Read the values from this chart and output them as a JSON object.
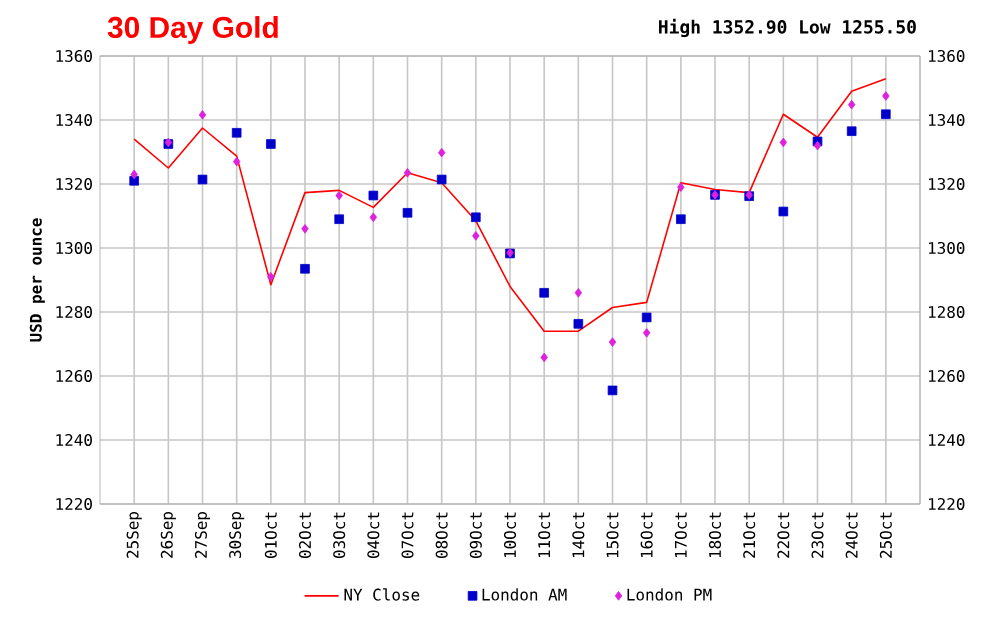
{
  "chart_data": {
    "type": "line",
    "title": "30 Day Gold",
    "subtitle": "High 1352.90 Low 1255.50",
    "ylabel": "USD per ounce",
    "categories": [
      "25Sep",
      "26Sep",
      "27Sep",
      "30Sep",
      "01Oct",
      "02Oct",
      "03Oct",
      "04Oct",
      "07Oct",
      "08Oct",
      "09Oct",
      "10Oct",
      "11Oct",
      "14Oct",
      "15Oct",
      "16Oct",
      "17Oct",
      "18Oct",
      "21Oct",
      "22Oct",
      "23Oct",
      "24Oct",
      "25Oct"
    ],
    "series": [
      {
        "name": "NY Close",
        "marker": "none",
        "color": "#ff0000",
        "values": [
          1334,
          1325,
          1337.5,
          1328.7,
          1288.5,
          1317.3,
          1318,
          1312.7,
          1323.5,
          1320.4,
          1308.5,
          1288,
          1274,
          1274,
          1281.4,
          1283,
          1320.4,
          1318.3,
          1317.3,
          1341.8,
          1334.6,
          1349,
          1352.9
        ]
      },
      {
        "name": "London AM",
        "type": "scatter",
        "marker": "square",
        "color": "#0000cc",
        "values": [
          1321,
          1332.5,
          1321.4,
          1336,
          1332.5,
          1293.5,
          1309,
          1316.4,
          1311,
          1321.4,
          1309.6,
          1298.3,
          1286,
          1276.3,
          1255.5,
          1278.3,
          1309,
          1316.6,
          1316.2,
          1311.4,
          1333.3,
          1336.5,
          1341.8
        ]
      },
      {
        "name": "London PM",
        "type": "scatter",
        "marker": "diamond",
        "color": "#dd22dd",
        "values": [
          1323,
          1333,
          1341.6,
          1327,
          1291,
          1306,
          1316.4,
          1309.6,
          1323.5,
          1329.8,
          1303.8,
          1298.5,
          1265.8,
          1286,
          1270.6,
          1273.5,
          1319,
          1316.6,
          1316.6,
          1333,
          1332,
          1344.8,
          1347.5
        ]
      }
    ],
    "ylim": [
      1220,
      1360
    ],
    "yticks": [
      1220,
      1240,
      1260,
      1280,
      1300,
      1320,
      1340,
      1360
    ],
    "y2lim": [
      1220,
      1360
    ],
    "y2ticks": [
      1220,
      1240,
      1260,
      1280,
      1300,
      1320,
      1340,
      1360
    ],
    "grid": true,
    "legend": "bottom"
  }
}
